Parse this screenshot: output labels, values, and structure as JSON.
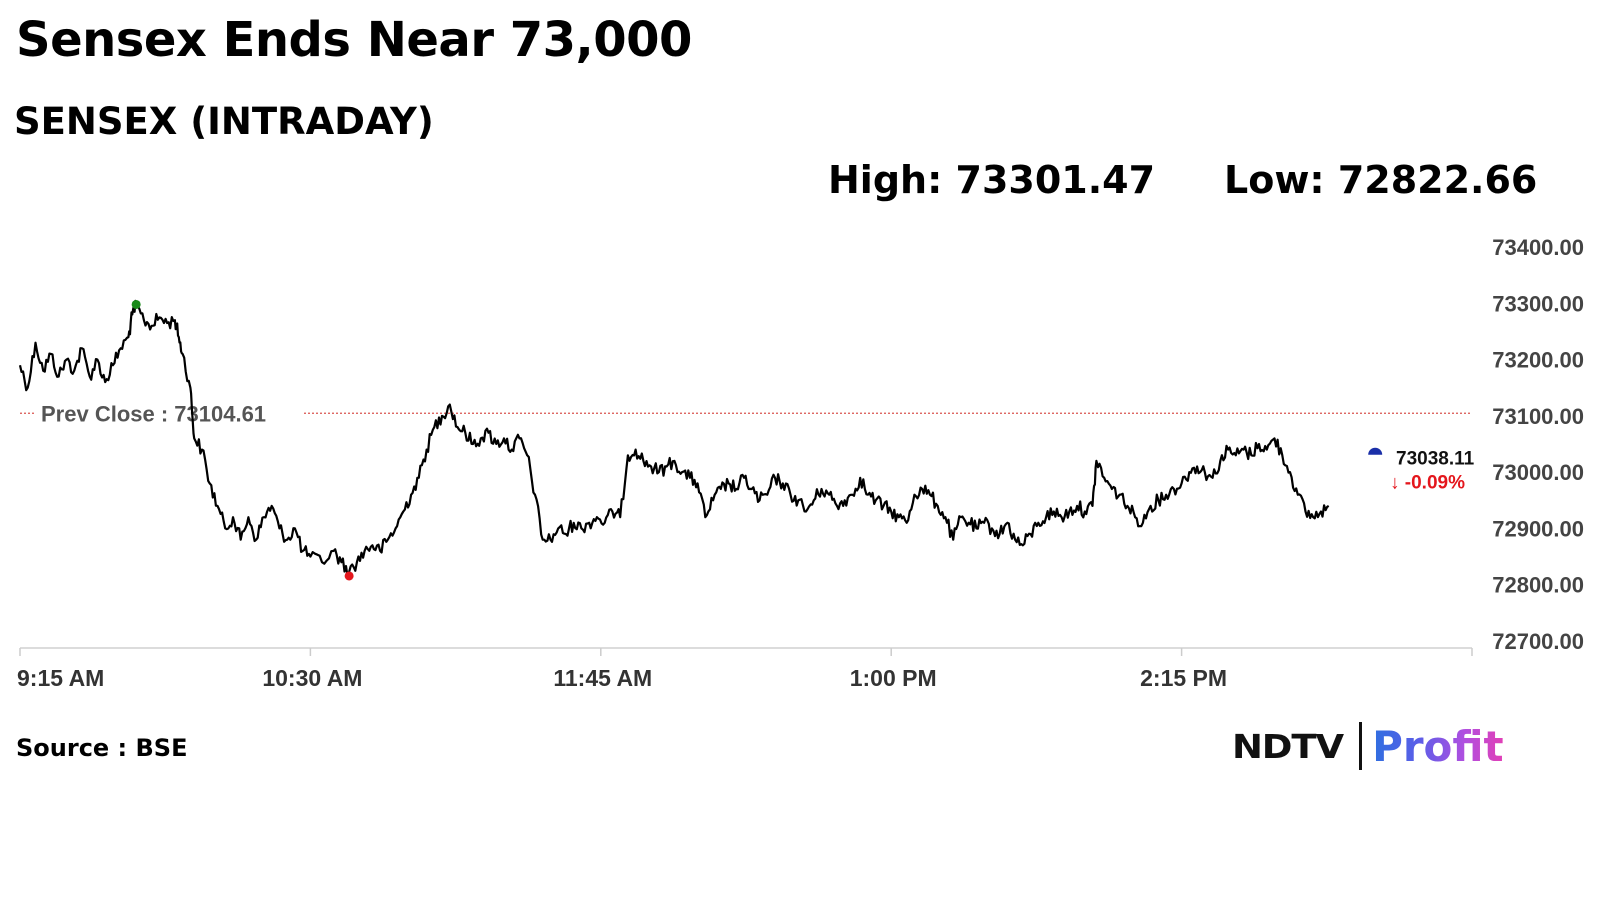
{
  "headline": "Sensex Ends Near 73,000",
  "subtitle": "SENSEX (INTRADAY)",
  "stats": {
    "high": "High: 73301.47",
    "low": "Low: 72822.66"
  },
  "source": "Source : BSE",
  "logo": {
    "ndtv": "NDTV",
    "profit": "Profit"
  },
  "colors": {
    "line": "#000000",
    "prev_close_line": "#d9534f",
    "high_marker": "#1a8a1a",
    "low_marker": "#e4161c",
    "last_marker": "#1a2fa8",
    "change_down": "#e4161c"
  },
  "chart_data": {
    "type": "line",
    "x_unit": "time of day",
    "x_start": "9:15 AM",
    "x_end": "3:30 PM",
    "x_ticks": [
      "9:15 AM",
      "10:30 AM",
      "11:45 AM",
      "1:00 PM",
      "2:15 PM"
    ],
    "y_ticks": [
      "73400.00",
      "73300.00",
      "73200.00",
      "73100.00",
      "73000.00",
      "72900.00",
      "72800.00",
      "72700.00"
    ],
    "ylim": [
      72700,
      73400
    ],
    "prev_close": {
      "label": "Prev Close : 73104.61",
      "value": 73104.61
    },
    "high": {
      "time": "9:45 AM",
      "value": 73301.47
    },
    "low": {
      "time": "10:40 AM",
      "value": 72822.66
    },
    "last": {
      "time": "3:05 PM",
      "value": 73038.11,
      "value_label": "73038.11",
      "change_label": "↓ -0.09%"
    },
    "series": [
      {
        "points": [
          [
            "9:15 AM",
            73190
          ],
          [
            "9:17 AM",
            73150
          ],
          [
            "9:19 AM",
            73230
          ],
          [
            "9:21 AM",
            73180
          ],
          [
            "9:23 AM",
            73210
          ],
          [
            "9:25 AM",
            73170
          ],
          [
            "9:27 AM",
            73200
          ],
          [
            "9:29 AM",
            73180
          ],
          [
            "9:31 AM",
            73220
          ],
          [
            "9:33 AM",
            73170
          ],
          [
            "9:35 AM",
            73200
          ],
          [
            "9:37 AM",
            73160
          ],
          [
            "9:39 AM",
            73190
          ],
          [
            "9:41 AM",
            73220
          ],
          [
            "9:43 AM",
            73240
          ],
          [
            "9:44 AM",
            73280
          ],
          [
            "9:45 AM",
            73295
          ],
          [
            "9:47 AM",
            73270
          ],
          [
            "9:49 AM",
            73260
          ],
          [
            "9:51 AM",
            73275
          ],
          [
            "9:53 AM",
            73265
          ],
          [
            "9:55 AM",
            73270
          ],
          [
            "9:56 AM",
            73240
          ],
          [
            "9:57 AM",
            73210
          ],
          [
            "9:59 AM",
            73150
          ],
          [
            "10:00 AM",
            73060
          ],
          [
            "10:02 AM",
            73040
          ],
          [
            "10:04 AM",
            72980
          ],
          [
            "10:06 AM",
            72940
          ],
          [
            "10:08 AM",
            72900
          ],
          [
            "10:10 AM",
            72920
          ],
          [
            "10:12 AM",
            72880
          ],
          [
            "10:14 AM",
            72920
          ],
          [
            "10:16 AM",
            72880
          ],
          [
            "10:18 AM",
            72920
          ],
          [
            "10:20 AM",
            72940
          ],
          [
            "10:22 AM",
            72900
          ],
          [
            "10:24 AM",
            72880
          ],
          [
            "10:26 AM",
            72900
          ],
          [
            "10:28 AM",
            72860
          ],
          [
            "10:30 AM",
            72850
          ],
          [
            "10:33 AM",
            72840
          ],
          [
            "10:36 AM",
            72860
          ],
          [
            "10:38 AM",
            72840
          ],
          [
            "10:40 AM",
            72822.66
          ],
          [
            "10:42 AM",
            72840
          ],
          [
            "10:44 AM",
            72860
          ],
          [
            "10:46 AM",
            72870
          ],
          [
            "10:48 AM",
            72860
          ],
          [
            "10:50 AM",
            72880
          ],
          [
            "10:52 AM",
            72900
          ],
          [
            "10:54 AM",
            72930
          ],
          [
            "10:56 AM",
            72960
          ],
          [
            "10:58 AM",
            72990
          ],
          [
            "11:00 AM",
            73040
          ],
          [
            "11:02 AM",
            73080
          ],
          [
            "11:04 AM",
            73100
          ],
          [
            "11:06 AM",
            73120
          ],
          [
            "11:08 AM",
            73080
          ],
          [
            "11:10 AM",
            73070
          ],
          [
            "11:12 AM",
            73050
          ],
          [
            "11:14 AM",
            73060
          ],
          [
            "11:16 AM",
            73070
          ],
          [
            "11:18 AM",
            73050
          ],
          [
            "11:20 AM",
            73060
          ],
          [
            "11:22 AM",
            73040
          ],
          [
            "11:24 AM",
            73060
          ],
          [
            "11:26 AM",
            73030
          ],
          [
            "11:28 AM",
            72960
          ],
          [
            "11:30 AM",
            72880
          ],
          [
            "11:32 AM",
            72880
          ],
          [
            "11:34 AM",
            72900
          ],
          [
            "11:36 AM",
            72890
          ],
          [
            "11:38 AM",
            72910
          ],
          [
            "11:40 AM",
            72900
          ],
          [
            "11:42 AM",
            72910
          ],
          [
            "11:44 AM",
            72920
          ],
          [
            "11:46 AM",
            72910
          ],
          [
            "11:48 AM",
            72930
          ],
          [
            "11:50 AM",
            72920
          ],
          [
            "11:52 AM",
            73030
          ],
          [
            "11:54 AM",
            73040
          ],
          [
            "11:56 AM",
            73020
          ],
          [
            "11:58 AM",
            73010
          ],
          [
            "12:00 PM",
            73000
          ],
          [
            "12:02 PM",
            73010
          ],
          [
            "12:04 PM",
            73020
          ],
          [
            "12:06 PM",
            73000
          ],
          [
            "12:08 PM",
            72990
          ],
          [
            "12:10 PM",
            72980
          ],
          [
            "12:12 PM",
            72920
          ],
          [
            "12:14 PM",
            72950
          ],
          [
            "12:16 PM",
            72970
          ],
          [
            "12:18 PM",
            72980
          ],
          [
            "12:20 PM",
            72970
          ],
          [
            "12:22 PM",
            72990
          ],
          [
            "12:24 PM",
            72970
          ],
          [
            "12:26 PM",
            72950
          ],
          [
            "12:28 PM",
            72960
          ],
          [
            "12:30 PM",
            72990
          ],
          [
            "12:32 PM",
            72980
          ],
          [
            "12:34 PM",
            72960
          ],
          [
            "12:36 PM",
            72950
          ],
          [
            "12:38 PM",
            72930
          ],
          [
            "12:40 PM",
            72950
          ],
          [
            "12:42 PM",
            72970
          ],
          [
            "12:44 PM",
            72960
          ],
          [
            "12:46 PM",
            72940
          ],
          [
            "12:48 PM",
            72950
          ],
          [
            "12:50 PM",
            72960
          ],
          [
            "12:52 PM",
            72990
          ],
          [
            "12:54 PM",
            72960
          ],
          [
            "12:56 PM",
            72950
          ],
          [
            "12:58 PM",
            72940
          ],
          [
            "1:00 PM",
            72930
          ],
          [
            "1:02 PM",
            72920
          ],
          [
            "1:04 PM",
            72910
          ],
          [
            "1:06 PM",
            72960
          ],
          [
            "1:08 PM",
            72970
          ],
          [
            "1:10 PM",
            72960
          ],
          [
            "1:12 PM",
            72940
          ],
          [
            "1:14 PM",
            72920
          ],
          [
            "1:16 PM",
            72880
          ],
          [
            "1:18 PM",
            72920
          ],
          [
            "1:20 PM",
            72910
          ],
          [
            "1:22 PM",
            72900
          ],
          [
            "1:24 PM",
            72910
          ],
          [
            "1:26 PM",
            72900
          ],
          [
            "1:28 PM",
            72890
          ],
          [
            "1:30 PM",
            72910
          ],
          [
            "1:32 PM",
            72880
          ],
          [
            "1:34 PM",
            72870
          ],
          [
            "1:36 PM",
            72890
          ],
          [
            "1:38 PM",
            72910
          ],
          [
            "1:40 PM",
            72920
          ],
          [
            "1:42 PM",
            72930
          ],
          [
            "1:44 PM",
            72920
          ],
          [
            "1:46 PM",
            72930
          ],
          [
            "1:48 PM",
            72940
          ],
          [
            "1:50 PM",
            72930
          ],
          [
            "1:52 PM",
            72940
          ],
          [
            "1:53 PM",
            73020
          ],
          [
            "1:55 PM",
            72990
          ],
          [
            "1:57 PM",
            72970
          ],
          [
            "1:59 PM",
            72960
          ],
          [
            "2:01 PM",
            72940
          ],
          [
            "2:03 PM",
            72920
          ],
          [
            "2:05 PM",
            72910
          ],
          [
            "2:07 PM",
            72940
          ],
          [
            "2:09 PM",
            72950
          ],
          [
            "2:11 PM",
            72960
          ],
          [
            "2:13 PM",
            72970
          ],
          [
            "2:15 PM",
            72980
          ],
          [
            "2:17 PM",
            73000
          ],
          [
            "2:19 PM",
            73010
          ],
          [
            "2:21 PM",
            73000
          ],
          [
            "2:23 PM",
            72990
          ],
          [
            "2:25 PM",
            73020
          ],
          [
            "2:27 PM",
            73040
          ],
          [
            "2:29 PM",
            73030
          ],
          [
            "2:31 PM",
            73040
          ],
          [
            "2:33 PM",
            73030
          ],
          [
            "2:35 PM",
            73050
          ],
          [
            "2:37 PM",
            73040
          ],
          [
            "2:39 PM",
            73060
          ],
          [
            "2:41 PM",
            73030
          ],
          [
            "2:43 PM",
            73000
          ],
          [
            "2:45 PM",
            72960
          ],
          [
            "2:47 PM",
            72930
          ],
          [
            "2:49 PM",
            72920
          ],
          [
            "2:51 PM",
            72930
          ],
          [
            "2:53 PM",
            72940
          ]
        ]
      }
    ]
  }
}
